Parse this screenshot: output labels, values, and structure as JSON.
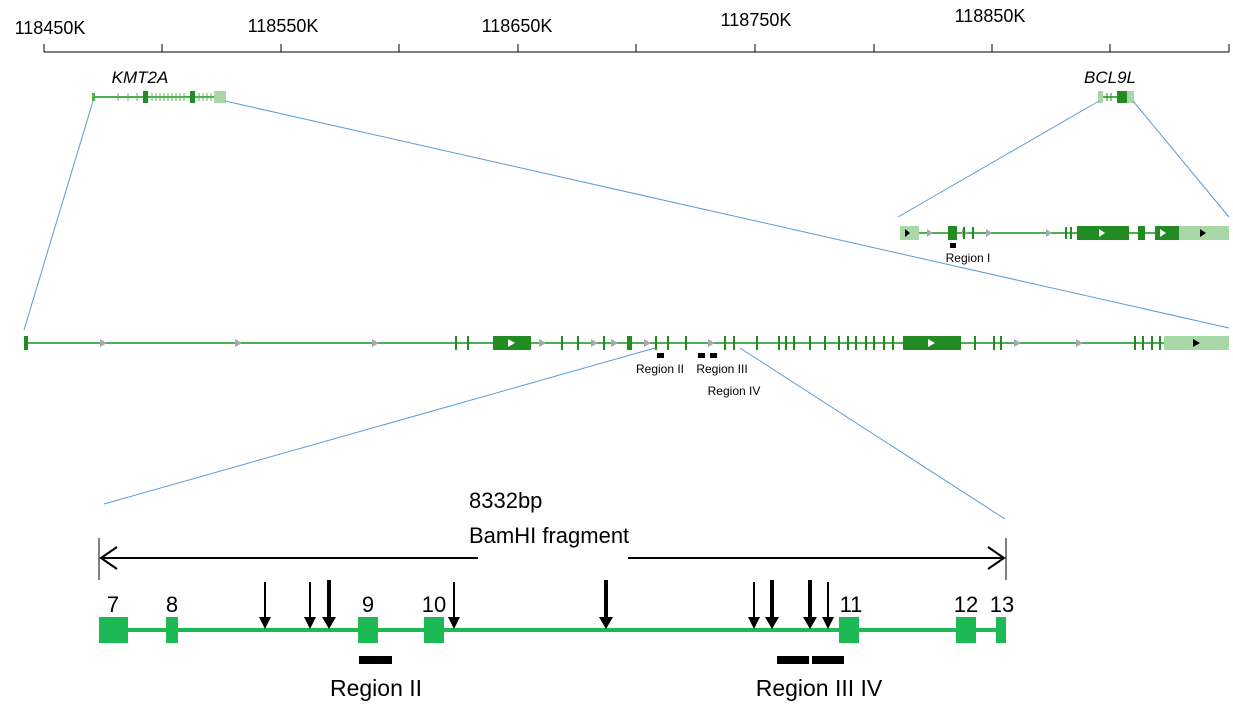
{
  "axis": {
    "tick_labels": [
      "118450K",
      "118550K",
      "118650K",
      "118750K",
      "118850K"
    ]
  },
  "genes": {
    "left": "KMT2A",
    "right": "BCL9L"
  },
  "regions": {
    "region_1": "Region I",
    "region_2": "Region II",
    "region_3": "Region III",
    "region_4": "Region IV",
    "bottom_region_2": "Region II",
    "bottom_region_34": "Region III IV"
  },
  "fragment": {
    "size": "8332bp",
    "name": "BamHI fragment"
  },
  "exons": [
    "7",
    "8",
    "9",
    "10",
    "11",
    "12",
    "13"
  ],
  "colors": {
    "exon_dark": "#228B22",
    "exon_light": "#A8D8A8",
    "exon_bright": "#1DB954",
    "zoom_line": "#5B9BD5",
    "arrow_grey": "#A8A8A8",
    "ink": "#000000"
  }
}
